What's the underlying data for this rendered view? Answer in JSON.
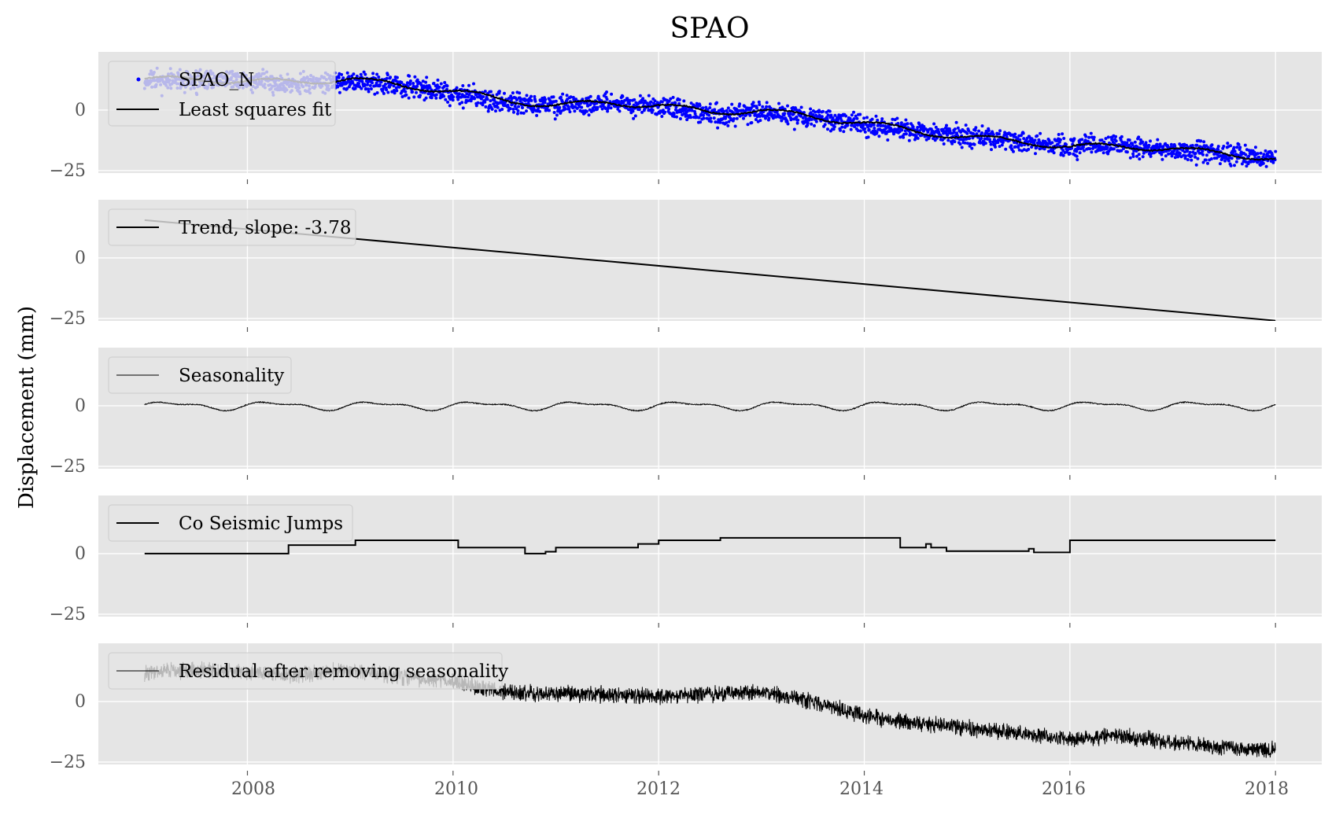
{
  "figure": {
    "title": "SPAO",
    "ylabel": "Displacement (mm)",
    "xticks": [
      "2008",
      "2010",
      "2012",
      "2014",
      "2016",
      "2018"
    ],
    "yticks": [
      "0",
      "−25"
    ]
  },
  "colors": {
    "panel_bg": "#e5e5e5",
    "grid": "#ffffff",
    "data_points": "#0000ff",
    "fit_line": "#000000",
    "legend_bg": "#e5e5e5",
    "legend_border": "#cccccc"
  },
  "chart_data": [
    {
      "type": "scatter",
      "panel": 1,
      "series": [
        {
          "name": "SPAO_N",
          "kind": "points",
          "color": "#0000ff",
          "x": [
            2007.0,
            2007.5,
            2008.0,
            2008.5,
            2009.0,
            2009.5,
            2010.0,
            2010.5,
            2011.0,
            2011.5,
            2012.0,
            2012.5,
            2013.0,
            2013.5,
            2014.0,
            2014.5,
            2015.0,
            2015.5,
            2016.0,
            2016.5,
            2017.0,
            2017.5,
            2018.0
          ],
          "y": [
            12,
            12,
            12,
            11,
            12,
            10,
            7,
            3,
            2,
            3,
            1,
            -2,
            -1,
            -3,
            -6,
            -9,
            -11,
            -13,
            -15,
            -15,
            -16,
            -18,
            -20
          ]
        },
        {
          "name": "Least squares fit",
          "kind": "line",
          "color": "#000000",
          "x": [
            2007.0,
            2007.5,
            2008.0,
            2008.5,
            2009.0,
            2009.5,
            2010.0,
            2010.5,
            2011.0,
            2011.5,
            2012.0,
            2012.5,
            2013.0,
            2013.5,
            2014.0,
            2014.5,
            2015.0,
            2015.5,
            2016.0,
            2016.5,
            2017.0,
            2017.5,
            2018.0
          ],
          "y": [
            13,
            12.5,
            12,
            11.5,
            13,
            10,
            8,
            4,
            2,
            3,
            2,
            -1,
            0,
            -3,
            -5,
            -9,
            -11,
            -13,
            -15,
            -15,
            -16,
            -18,
            -20
          ]
        }
      ],
      "ylim": [
        -26,
        24
      ]
    },
    {
      "type": "line",
      "panel": 2,
      "series": [
        {
          "name": "Trend, slope: -3.78",
          "x": [
            2007.0,
            2018.0
          ],
          "y": [
            15.6,
            -25.9
          ]
        }
      ],
      "ylim": [
        -26,
        24
      ]
    },
    {
      "type": "line",
      "panel": 3,
      "series": [
        {
          "name": "Seasonality",
          "function": "seasonal",
          "x_start": 2007.0,
          "x_end": 2018.0,
          "amplitude_mm": 2.0,
          "period_years": 1.0
        }
      ],
      "ylim": [
        -26,
        24
      ]
    },
    {
      "type": "line",
      "panel": 4,
      "series": [
        {
          "name": "Co Seismic Jumps",
          "step": true,
          "x": [
            2007.0,
            2008.4,
            2009.05,
            2010.05,
            2010.7,
            2010.9,
            2011.0,
            2011.8,
            2012.0,
            2012.6,
            2014.35,
            2014.6,
            2014.65,
            2014.8,
            2015.6,
            2015.65,
            2016.0,
            2018.0
          ],
          "y": [
            0,
            3.5,
            5.5,
            2.5,
            0,
            0.8,
            2.5,
            4,
            5.5,
            6.5,
            2.5,
            4,
            2.5,
            1,
            2,
            0.5,
            5.5,
            5.5
          ]
        }
      ],
      "ylim": [
        -26,
        24
      ]
    },
    {
      "type": "line",
      "panel": 5,
      "series": [
        {
          "name": "Residual after removing seasonality",
          "x": [
            2007.0,
            2007.5,
            2008.0,
            2008.5,
            2009.0,
            2009.5,
            2010.0,
            2010.5,
            2011.0,
            2011.5,
            2012.0,
            2012.5,
            2013.0,
            2013.5,
            2014.0,
            2014.5,
            2015.0,
            2015.5,
            2016.0,
            2016.5,
            2017.0,
            2017.5,
            2018.0
          ],
          "y": [
            12,
            13,
            12,
            11,
            13,
            10,
            8,
            4,
            3,
            3,
            2,
            3,
            4,
            0,
            -6,
            -9,
            -11,
            -13,
            -16,
            -14,
            -17,
            -19,
            -20
          ]
        }
      ],
      "ylim": [
        -26,
        24
      ]
    }
  ]
}
